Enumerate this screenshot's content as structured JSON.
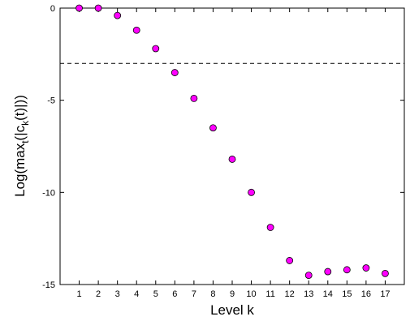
{
  "chart_data": {
    "type": "scatter",
    "title": "",
    "xlabel": "Level k",
    "ylabel_parts": {
      "a": "Log(max",
      "sub_t": "t",
      "b": "(|c",
      "sub_k": "k",
      "c": "(t)|))"
    },
    "xlim": [
      0,
      18
    ],
    "ylim": [
      -15,
      0
    ],
    "xticks": [
      "1",
      "2",
      "3",
      "4",
      "5",
      "6",
      "7",
      "8",
      "9",
      "10",
      "11",
      "12",
      "13",
      "14",
      "15",
      "16",
      "17"
    ],
    "yticks": [
      "0",
      "-5",
      "-10",
      "-15"
    ],
    "ytick_values": [
      0,
      -5,
      -10,
      -15
    ],
    "threshold": -3,
    "marker_color": "#ff00ff",
    "x": [
      1,
      2,
      3,
      4,
      5,
      6,
      7,
      8,
      9,
      10,
      11,
      12,
      13,
      14,
      15,
      16,
      17
    ],
    "y": [
      0,
      0,
      -0.4,
      -1.2,
      -2.2,
      -3.5,
      -4.9,
      -6.5,
      -8.2,
      -10.0,
      -11.9,
      -13.7,
      -14.5,
      -14.3,
      -14.2,
      -14.1,
      -14.4
    ],
    "grid": false,
    "legend": "none"
  }
}
